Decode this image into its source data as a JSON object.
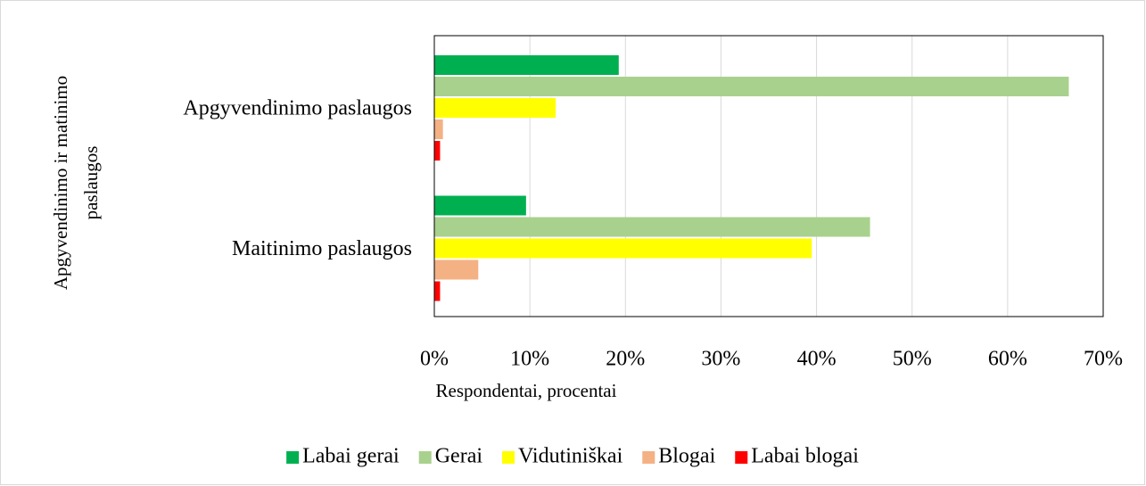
{
  "chart_data": {
    "type": "hbar",
    "y_label": [
      "Apgyvendinimo ir matinimo",
      "paslaugos"
    ],
    "x_label": "Respondentai, procentai",
    "categories": [
      "Apgyvendinimo paslaugos",
      "Maitinimo paslaugos"
    ],
    "series": [
      {
        "name": "Labai gerai",
        "color": "#00b050",
        "values": [
          19.3,
          9.6
        ]
      },
      {
        "name": "Gerai",
        "color": "#a9d18e",
        "values": [
          66.4,
          45.6
        ]
      },
      {
        "name": "Vidutiniškai",
        "color": "#ffff00",
        "values": [
          12.7,
          39.5
        ]
      },
      {
        "name": "Blogai",
        "color": "#f4b183",
        "values": [
          0.9,
          4.6
        ]
      },
      {
        "name": "Labai blogai",
        "color": "#ff0000",
        "values": [
          0.6,
          0.6
        ]
      }
    ],
    "xlim": [
      0,
      70
    ],
    "xticks": [
      {
        "value": 0,
        "label": "0%"
      },
      {
        "value": 10,
        "label": "10%"
      },
      {
        "value": 20,
        "label": "20%"
      },
      {
        "value": 30,
        "label": "30%"
      },
      {
        "value": 40,
        "label": "40%"
      },
      {
        "value": 50,
        "label": "50%"
      },
      {
        "value": 60,
        "label": "60%"
      },
      {
        "value": 70,
        "label": "70%"
      }
    ],
    "grid": true,
    "legend": "bottom"
  }
}
